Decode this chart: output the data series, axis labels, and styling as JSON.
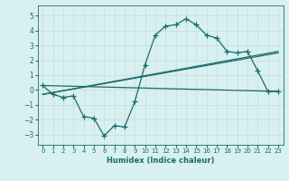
{
  "xlabel": "Humidex (Indice chaleur)",
  "background_color": "#d8f0f0",
  "grid_color": "#c8e0e0",
  "line_color": "#1a6b6b",
  "xlim": [
    -0.5,
    23.5
  ],
  "ylim": [
    -3.7,
    5.7
  ],
  "yticks": [
    -3,
    -2,
    -1,
    0,
    1,
    2,
    3,
    4,
    5
  ],
  "xticks": [
    0,
    1,
    2,
    3,
    4,
    5,
    6,
    7,
    8,
    9,
    10,
    11,
    12,
    13,
    14,
    15,
    16,
    17,
    18,
    19,
    20,
    21,
    22,
    23
  ],
  "series1_x": [
    0,
    1,
    2,
    3,
    4,
    5,
    6,
    7,
    8,
    9,
    10,
    11,
    12,
    13,
    14,
    15,
    16,
    17,
    18,
    19,
    20,
    21,
    22,
    23
  ],
  "series1_y": [
    0.3,
    -0.3,
    -0.5,
    -0.4,
    -1.8,
    -1.9,
    -3.1,
    -2.4,
    -2.5,
    -0.8,
    1.7,
    3.7,
    4.3,
    4.4,
    4.8,
    4.4,
    3.7,
    3.5,
    2.6,
    2.5,
    2.6,
    1.3,
    -0.1,
    -0.1
  ],
  "series2_x": [
    0,
    23
  ],
  "series2_y": [
    0.3,
    -0.1
  ],
  "series3_x": [
    0,
    23
  ],
  "series3_y": [
    -0.3,
    2.5
  ],
  "series4_x": [
    0,
    23
  ],
  "series4_y": [
    -0.3,
    2.6
  ]
}
